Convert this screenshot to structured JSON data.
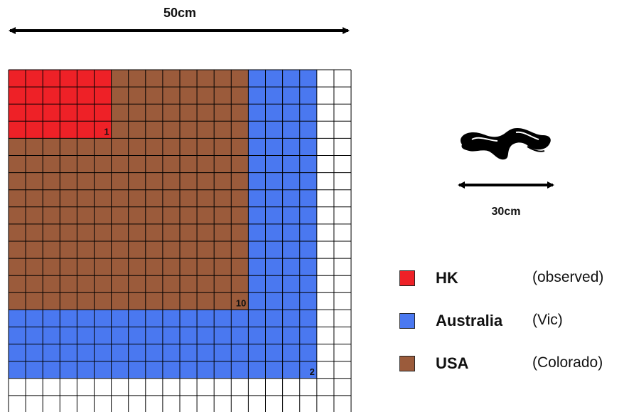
{
  "dimension_labels": {
    "width": "50cm",
    "snake_length": "30cm"
  },
  "grid": {
    "columns": 20,
    "rows": 20,
    "regions": [
      {
        "key": "usa",
        "cols": 14,
        "rows": 14,
        "color": "#9b5b3b"
      },
      {
        "key": "australia",
        "cols": 18,
        "rows": 18,
        "color": "#4a78f0"
      },
      {
        "key": "hk",
        "cols": 6,
        "rows": 4,
        "color": "#ee2127"
      }
    ],
    "markers": [
      {
        "text": "1",
        "col": 6,
        "row": 4
      },
      {
        "text": "10",
        "col": 14,
        "row": 14
      },
      {
        "text": "2",
        "col": 18,
        "row": 18
      }
    ]
  },
  "legend": [
    {
      "name": "HK",
      "detail": "(observed)",
      "color": "#ee2127"
    },
    {
      "name": "Australia",
      "detail": "(Vic)",
      "color": "#4a78f0"
    },
    {
      "name": "USA",
      "detail": "(Colorado)",
      "color": "#9b5b3b"
    }
  ],
  "icons": {
    "snake": "snake-icon"
  }
}
